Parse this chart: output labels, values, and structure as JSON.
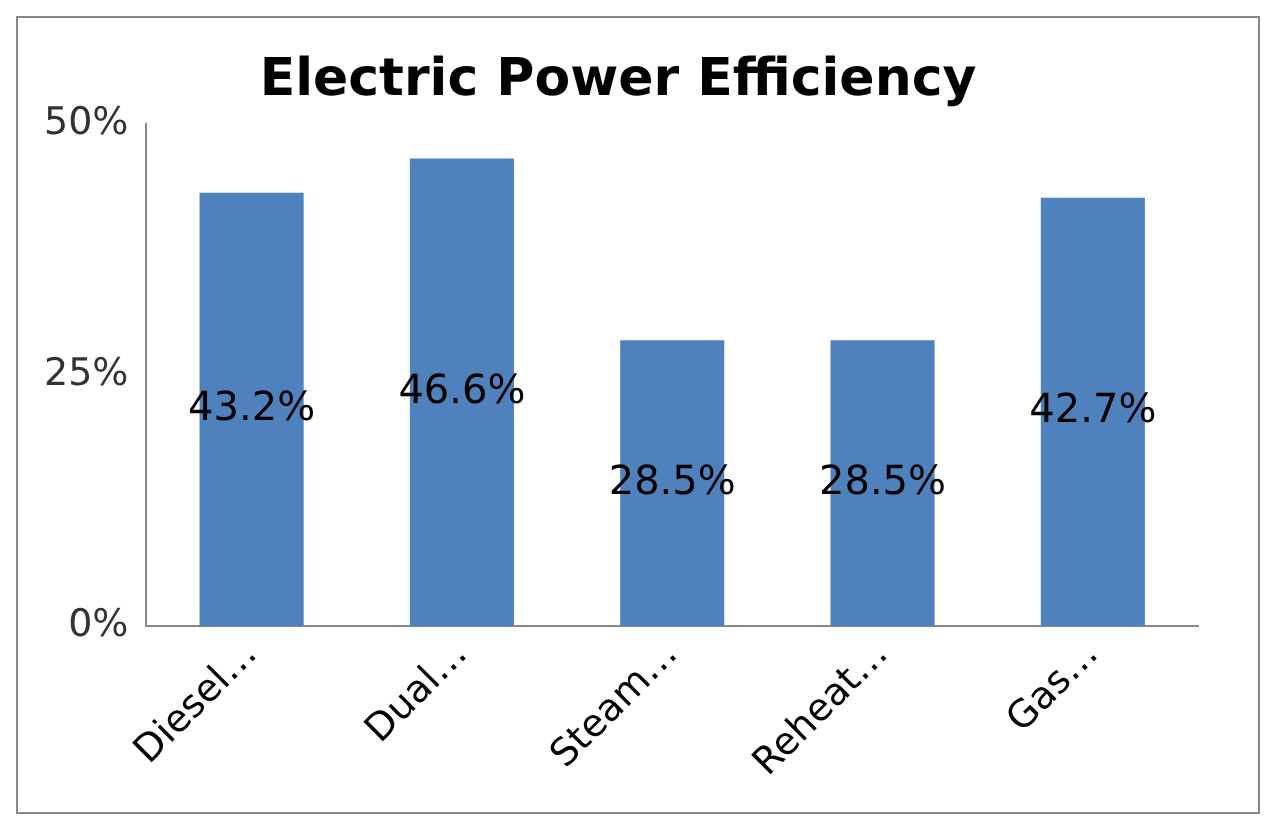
{
  "chart_data": {
    "type": "bar",
    "title": "Electric Power Efficiency",
    "categories": [
      "Diesel…",
      "Dual…",
      "Steam…",
      "Reheat…",
      "Gas…"
    ],
    "values": [
      43.2,
      46.6,
      28.5,
      28.5,
      42.7
    ],
    "value_labels": [
      "43.2%",
      "46.6%",
      "28.5%",
      "28.5%",
      "42.7%"
    ],
    "color": "#4f81bd",
    "ylim": [
      0,
      50
    ],
    "yticks": [
      {
        "value": 0,
        "label": "0%"
      },
      {
        "value": 25,
        "label": "25%"
      },
      {
        "value": 50,
        "label": "50%"
      }
    ],
    "grid": false,
    "legend": false
  }
}
